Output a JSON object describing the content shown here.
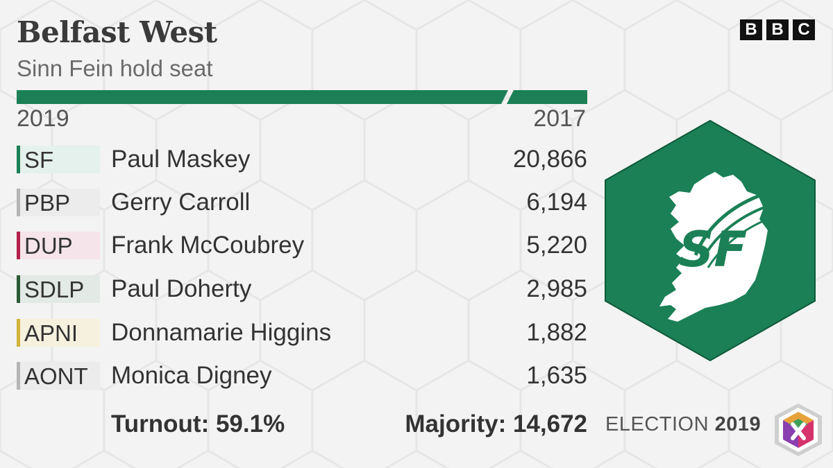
{
  "header": {
    "title": "Belfast West",
    "subtitle": "Sinn Fein hold seat",
    "brand_letters": [
      "B",
      "B",
      "C"
    ]
  },
  "years": {
    "current": "2019",
    "previous": "2017"
  },
  "colors": {
    "winner": "#1b8056",
    "accent_bar": "#1b8056"
  },
  "results": [
    {
      "abbr": "SF",
      "candidate": "Paul Maskey",
      "votes": "20,866",
      "color": "#1b8056",
      "tint": "#e4f1ec"
    },
    {
      "abbr": "PBP",
      "candidate": "Gerry Carroll",
      "votes": "6,194",
      "color": "#b5b5b5",
      "tint": "#ececec"
    },
    {
      "abbr": "DUP",
      "candidate": "Frank McCoubrey",
      "votes": "5,220",
      "color": "#b3204a",
      "tint": "#f5e4ea"
    },
    {
      "abbr": "SDLP",
      "candidate": "Paul Doherty",
      "votes": "2,985",
      "color": "#2b5a35",
      "tint": "#e3e9e4"
    },
    {
      "abbr": "APNI",
      "candidate": "Donnamarie Higgins",
      "votes": "1,882",
      "color": "#d2b33a",
      "tint": "#f6f1df"
    },
    {
      "abbr": "AONT",
      "candidate": "Monica Digney",
      "votes": "1,635",
      "color": "#b5b5b5",
      "tint": "#ececec"
    }
  ],
  "footer": {
    "turnout": "Turnout: 59.1%",
    "majority": "Majority: 14,672",
    "election_prefix": "ELECTION",
    "election_year": "2019"
  },
  "logo": {
    "party_mark": "SF",
    "icon": "sinn-fein-ireland-logo-icon"
  }
}
